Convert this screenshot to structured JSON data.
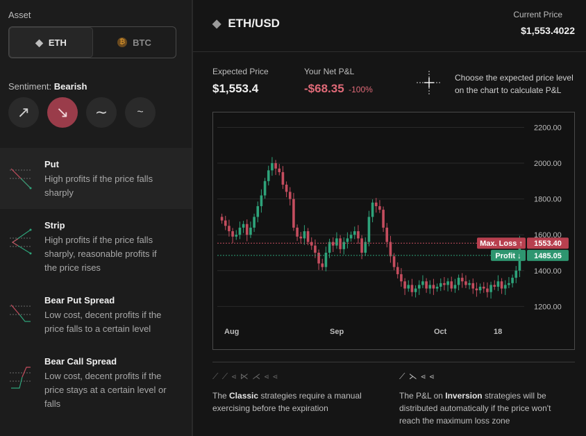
{
  "sidebar": {
    "asset_label": "Asset",
    "assets": [
      {
        "label": "ETH",
        "active": true
      },
      {
        "label": "BTC",
        "active": false
      }
    ],
    "sentiment_label": "Sentiment:",
    "sentiment_value": "Bearish",
    "sentiments": [
      "arrow-up-right-icon",
      "arrow-down-right-icon",
      "wave-icon",
      "wave-small-icon"
    ],
    "strategies": [
      {
        "title": "Put",
        "desc": [
          "High profits if the price falls",
          "sharply"
        ]
      },
      {
        "title": "Strip",
        "desc": [
          "High profits if the price falls",
          "sharply, reasonable profits if",
          "the price rises"
        ]
      },
      {
        "title": "Bear Put Spread",
        "desc": [
          "Low cost, decent profits if the",
          "price falls to a certain level"
        ]
      },
      {
        "title": "Bear Call Spread",
        "desc": [
          "Low cost, decent profits if the",
          "price stays at a certain level or",
          "falls"
        ]
      }
    ]
  },
  "header": {
    "pair": "ETH/USD",
    "current_price_label": "Current Price",
    "current_price": "$1,553.4022"
  },
  "stats": {
    "expected_label": "Expected Price",
    "expected_value": "$1,553.4",
    "pnl_label": "Your Net P&L",
    "pnl_value": "-$68.35",
    "pnl_pct": "-100%",
    "hint_line1": "Choose the expected price level",
    "hint_line2": "on the chart to calculate P&L"
  },
  "chart_data": {
    "type": "candlestick",
    "x_ticks": [
      "Aug",
      "Sep",
      "Oct",
      "18"
    ],
    "y_ticks": [
      "2200.00",
      "2000.00",
      "1800.00",
      "1600.00",
      "1400.00",
      "1200.00"
    ],
    "ylim": [
      1120,
      2260
    ],
    "max_loss": {
      "label": "Max. Loss ↑",
      "value": "1553.40",
      "price": 1553.4
    },
    "profit": {
      "label": "Profit ↓",
      "value": "1485.05",
      "price": 1485.05
    },
    "closes": [
      1680,
      1650,
      1620,
      1590,
      1600,
      1640,
      1660,
      1600,
      1640,
      1700,
      1760,
      1820,
      1900,
      1960,
      2000,
      1970,
      1950,
      1880,
      1840,
      1800,
      1640,
      1590,
      1580,
      1620,
      1560,
      1540,
      1500,
      1440,
      1420,
      1500,
      1560,
      1540,
      1580,
      1520,
      1560,
      1580,
      1600,
      1620,
      1580,
      1500,
      1560,
      1700,
      1780,
      1760,
      1740,
      1640,
      1560,
      1480,
      1420,
      1380,
      1340,
      1300,
      1320,
      1280,
      1300,
      1320,
      1340,
      1300,
      1320,
      1300,
      1310,
      1330,
      1320,
      1340,
      1300,
      1320,
      1360,
      1340,
      1320,
      1330,
      1300,
      1290,
      1310,
      1300,
      1280,
      1320,
      1310,
      1340,
      1300,
      1320,
      1330,
      1360,
      1400,
      1560
    ]
  },
  "notes": {
    "classic_pre": "The ",
    "classic_bold": "Classic",
    "classic_post": " strategies require a manual exercising before the expiration",
    "inversion_pre": "The P&L on ",
    "inversion_bold": "Inversion",
    "inversion_post": " strategies will be distributed automatically if the price won't reach the maximum loss zone"
  },
  "colors": {
    "up": "#2ea37a",
    "down": "#c44d5e",
    "accent_red": "#e06a78",
    "accent_green": "#3aa57f"
  }
}
